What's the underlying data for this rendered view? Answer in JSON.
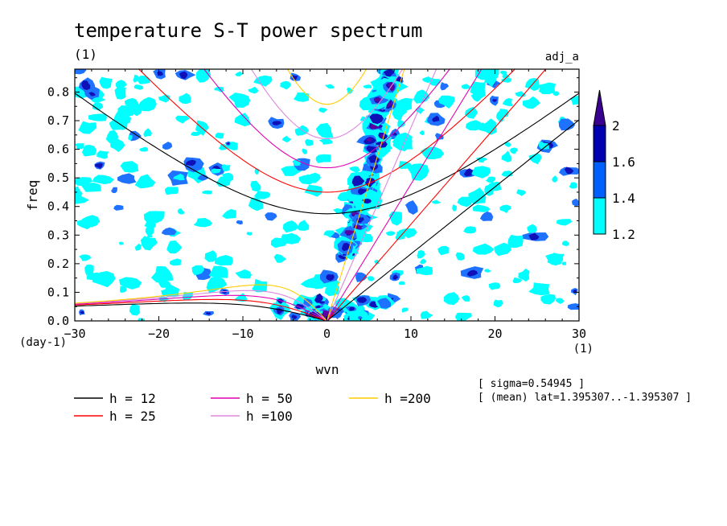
{
  "chart_data": {
    "type": "heatmap",
    "title": "temperature S-T power spectrum",
    "units_top_left": "(1)",
    "label_top_right": "adj_a",
    "xlabel": "wvn",
    "xunits": "(1)",
    "ylabel": "freq",
    "yunits": "(day-1)",
    "xlim": [
      -30,
      30
    ],
    "ylim": [
      0,
      0.88
    ],
    "xticks": [
      -30,
      -20,
      -10,
      0,
      10,
      20,
      30
    ],
    "yticks": [
      0.0,
      0.1,
      0.2,
      0.3,
      0.4,
      0.5,
      0.6,
      0.7,
      0.8
    ],
    "colorbar": {
      "levels": [
        1.2,
        1.4,
        1.6,
        2
      ],
      "labels": [
        "1.2",
        "1.4",
        "1.6",
        "2"
      ],
      "colors": [
        "#00ffff",
        "#0060ff",
        "#0000b0",
        "#3a0090"
      ]
    },
    "shading_colors": [
      "#00ffff",
      "#1e72ff",
      "#1010b8",
      "#5a00a0"
    ],
    "dispersion_curves": [
      {
        "name": "h = 12",
        "h": 12,
        "color": "#000000"
      },
      {
        "name": "h = 25",
        "h": 25,
        "color": "#ff0000"
      },
      {
        "name": "h = 50",
        "h": 50,
        "color": "#e000b0"
      },
      {
        "name": "h =100",
        "h": 100,
        "color": "#dd88dd"
      },
      {
        "name": "h =200",
        "h": 200,
        "color": "#ffcc00"
      }
    ],
    "annotations": [
      "[ sigma=0.54945 ]",
      "[ (mean) lat=1.395307..-1.395307 ]"
    ]
  }
}
